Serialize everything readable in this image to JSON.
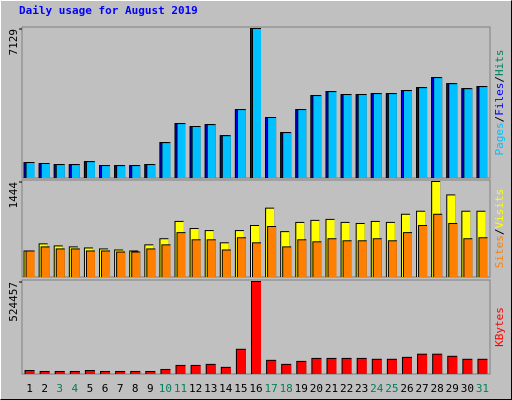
{
  "chart_data": {
    "type": "bar",
    "title": "Daily usage for August 2019",
    "categories": [
      "1",
      "2",
      "3",
      "4",
      "5",
      "6",
      "7",
      "8",
      "9",
      "10",
      "11",
      "12",
      "13",
      "14",
      "15",
      "16",
      "17",
      "18",
      "19",
      "20",
      "21",
      "22",
      "23",
      "24",
      "25",
      "26",
      "27",
      "28",
      "29",
      "30",
      "31"
    ],
    "category_colors": [
      "#000000",
      "#000000",
      "#00805c",
      "#00805c",
      "#000000",
      "#000000",
      "#000000",
      "#000000",
      "#000000",
      "#00805c",
      "#00805c",
      "#000000",
      "#000000",
      "#000000",
      "#000000",
      "#000000",
      "#00805c",
      "#00805c",
      "#000000",
      "#000000",
      "#000000",
      "#000000",
      "#000000",
      "#00805c",
      "#00805c",
      "#000000",
      "#000000",
      "#000000",
      "#000000",
      "#000000",
      "#00805c"
    ],
    "legend_separator": "/",
    "panels": [
      {
        "ylim": [
          0,
          7129
        ],
        "yticks": [
          7129
        ],
        "series": [
          {
            "name": "Hits",
            "color": "#00805c",
            "values": [
              717,
              670,
              620,
              620,
              760,
              570,
              570,
              570,
              620,
              1670,
              2580,
              2440,
              2530,
              2000,
              3250,
              7129,
              2870,
              2150,
              3250,
              3920,
              4110,
              3970,
              3970,
              4015,
              4015,
              4160,
              4300,
              4780,
              4490,
              4250,
              4350
            ]
          },
          {
            "name": "Files",
            "color": "#0000ff",
            "values": [
              717,
              670,
              620,
              620,
              760,
              570,
              570,
              570,
              620,
              1670,
              2580,
              2440,
              2530,
              2000,
              3250,
              7129,
              2870,
              2150,
              3250,
              3920,
              4110,
              3970,
              3970,
              4015,
              4015,
              4160,
              4300,
              4780,
              4490,
              4250,
              4350
            ]
          },
          {
            "name": "Pages",
            "color": "#00c0ff",
            "values": [
              717,
              670,
              620,
              620,
              760,
              570,
              570,
              570,
              620,
              1670,
              2580,
              2440,
              2530,
              2000,
              3250,
              7129,
              2870,
              2150,
              3250,
              3920,
              4110,
              3970,
              3970,
              4015,
              4015,
              4160,
              4300,
              4780,
              4490,
              4250,
              4350
            ]
          }
        ]
      },
      {
        "ylim": [
          0,
          1444
        ],
        "yticks": [
          1444
        ],
        "series": [
          {
            "name": "Visits",
            "color": "#ffff00",
            "values": [
              388,
              496,
              465,
              450,
              434,
              419,
              403,
              388,
              481,
              574,
              837,
              729,
              698,
              512,
              698,
              775,
              1039,
              682,
              822,
              853,
              868,
              822,
              806,
              837,
              822,
              946,
              992,
              1444,
              1240,
              992,
              992
            ]
          },
          {
            "name": "Sites",
            "color": "#ff8000",
            "values": [
              388,
              450,
              419,
              419,
              388,
              388,
              372,
              372,
              419,
              481,
              667,
              558,
              558,
              403,
              589,
              512,
              760,
              450,
              558,
              527,
              574,
              543,
              543,
              574,
              543,
              667,
              775,
              946,
              806,
              574,
              589
            ]
          }
        ]
      },
      {
        "ylim": [
          0,
          524457
        ],
        "yticks": [
          524457
        ],
        "series": [
          {
            "name": "KBytes",
            "color": "#ff0000",
            "values": [
              17000,
              11500,
              11500,
              11500,
              17000,
              11500,
              11500,
              11500,
              11500,
              23000,
              46000,
              46000,
              52000,
              35000,
              138000,
              524457,
              75000,
              52000,
              69000,
              86000,
              86000,
              86000,
              86000,
              81000,
              81000,
              92000,
              110000,
              110000,
              98000,
              81000,
              81000
            ]
          }
        ]
      }
    ]
  }
}
